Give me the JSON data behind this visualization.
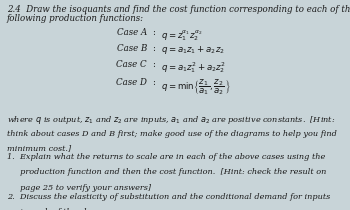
{
  "title_line1": "2.4  Draw the isoquants and find the cost function corresponding to each of the",
  "title_line2": "following production functions:",
  "cases": [
    {
      "label": "Case A",
      "eq": "$q = z_1^{\\alpha_1} z_2^{\\alpha_2}$"
    },
    {
      "label": "Case B",
      "eq": "$q = a_1 z_1 + a_2 z_2$"
    },
    {
      "label": "Case C",
      "eq": "$q = a_1 z_1^2 + a_2 z_2^2$"
    },
    {
      "label": "Case D",
      "eq": "$q = \\min\\left\\{\\dfrac{z_1}{a_1},\\dfrac{z_2}{a_2}\\right\\}$"
    }
  ],
  "description_lines": [
    "where $q$ is output, $z_1$ and $z_2$ are inputs, $a_1$ and $a_2$ are positive constants.  [Hint:",
    "think about cases D and B first; make good use of the diagrams to help you find",
    "minimum cost.]"
  ],
  "item1_lines": [
    "1.  Explain what the returns to scale are in each of the above cases using the",
    "     production function and then the cost function.  [Hint: check the result on",
    "     page 25 to verify your answers]"
  ],
  "item2_lines": [
    "2.  Discuss the elasticity of substitution and the conditional demand for inputs",
    "     in each of the above cases."
  ],
  "bg_color": "#c8d4d8",
  "text_color": "#1a1a1a",
  "heading_fontsize": 6.2,
  "case_fontsize": 6.2,
  "body_fontsize": 5.9
}
